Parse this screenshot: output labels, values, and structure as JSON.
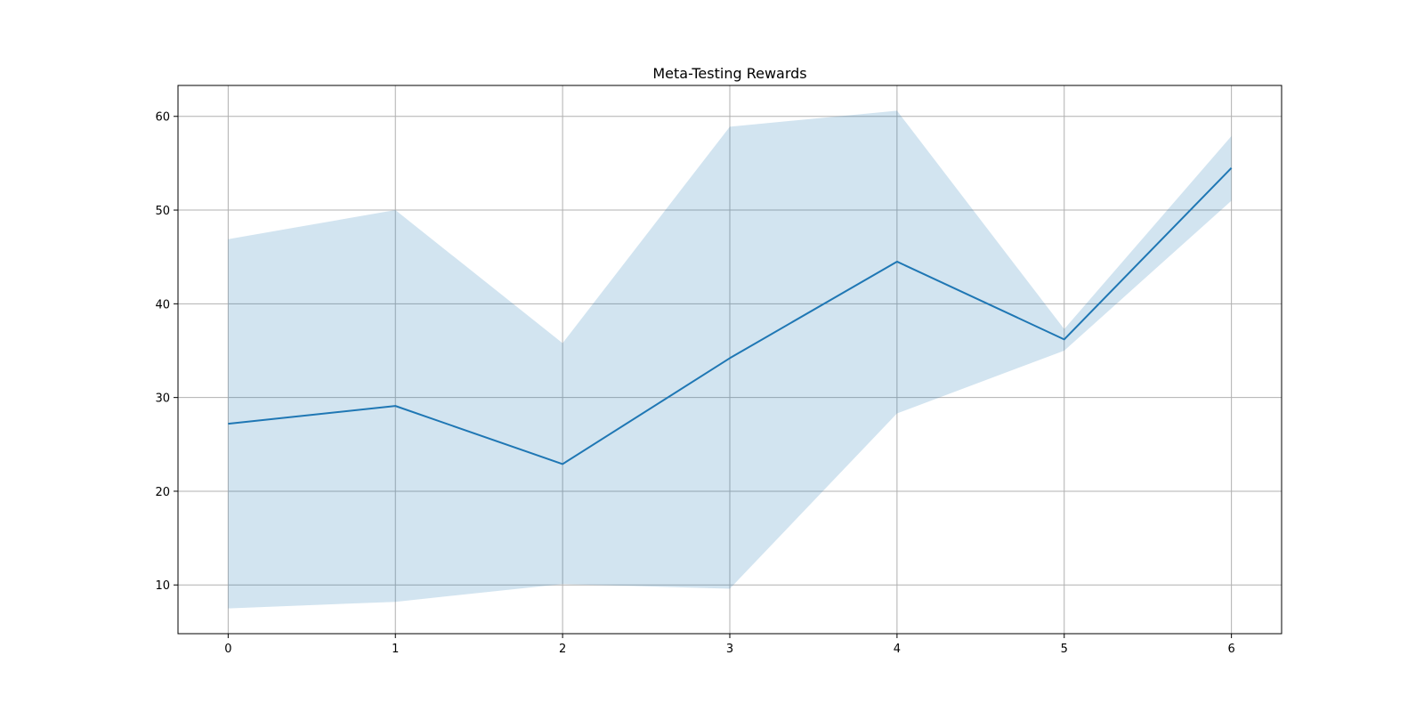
{
  "chart_data": {
    "type": "line",
    "title": "Meta-Testing Rewards",
    "xlabel": "",
    "ylabel": "",
    "x": [
      0,
      1,
      2,
      3,
      4,
      5,
      6
    ],
    "xticks": [
      "0",
      "1",
      "2",
      "3",
      "4",
      "5",
      "6"
    ],
    "yticks": [
      "10",
      "20",
      "30",
      "40",
      "50",
      "60"
    ],
    "xlim": [
      -0.3,
      6.3
    ],
    "ylim": [
      4.8,
      63.3
    ],
    "grid": true,
    "series": [
      {
        "values": [
          27.2,
          29.1,
          22.9,
          34.2,
          44.5,
          36.2,
          54.5
        ],
        "band_upper": [
          46.9,
          50.0,
          35.8,
          58.9,
          60.6,
          37.3,
          57.9
        ],
        "band_lower": [
          7.5,
          8.2,
          10.1,
          9.6,
          28.3,
          35.0,
          51.0
        ],
        "color": "#1f77b4",
        "band_color": "#1f77b4",
        "band_alpha": 0.2
      }
    ]
  }
}
